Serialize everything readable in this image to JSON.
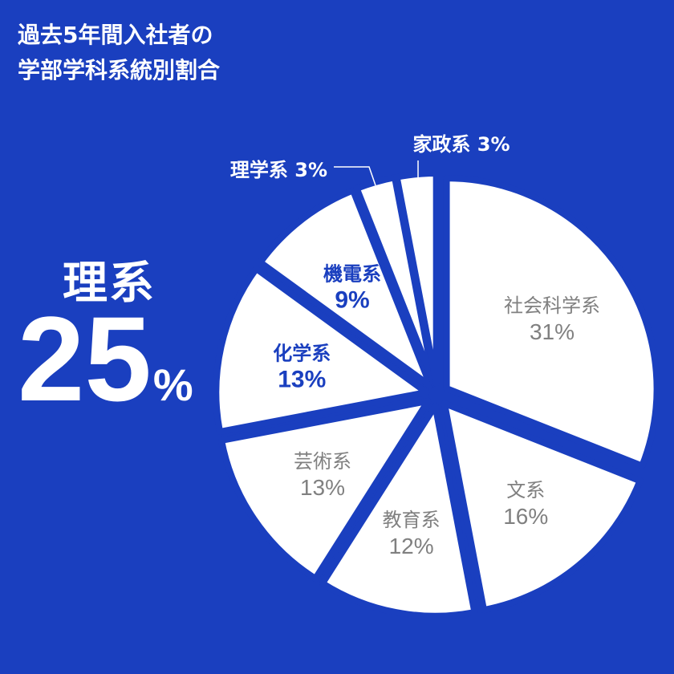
{
  "title": {
    "line1": "過去5年間入社者の",
    "line2": "学部学科系統別割合"
  },
  "science_total": {
    "label": "理系",
    "value": "25",
    "unit": "%"
  },
  "colors": {
    "background": "#1a3fbf",
    "slice": "#ffffff",
    "science_text": "#1a3fbf",
    "humanities_text": "#808080",
    "outside_text": "#ffffff"
  },
  "chart_data": {
    "type": "pie",
    "unit": "%",
    "slices": [
      {
        "label": "社会科学系",
        "value": 31,
        "group": "humanities",
        "placement": "inside"
      },
      {
        "label": "文系",
        "value": 16,
        "group": "humanities",
        "placement": "inside"
      },
      {
        "label": "教育系",
        "value": 12,
        "group": "humanities",
        "placement": "inside"
      },
      {
        "label": "芸術系",
        "value": 13,
        "group": "humanities",
        "placement": "inside"
      },
      {
        "label": "化学系",
        "value": 13,
        "group": "science",
        "placement": "inside"
      },
      {
        "label": "機電系",
        "value": 9,
        "group": "science",
        "placement": "inside"
      },
      {
        "label": "理学系",
        "value": 3,
        "group": "science",
        "placement": "outside"
      },
      {
        "label": "家政系",
        "value": 3,
        "group": "humanities",
        "placement": "outside"
      }
    ]
  }
}
